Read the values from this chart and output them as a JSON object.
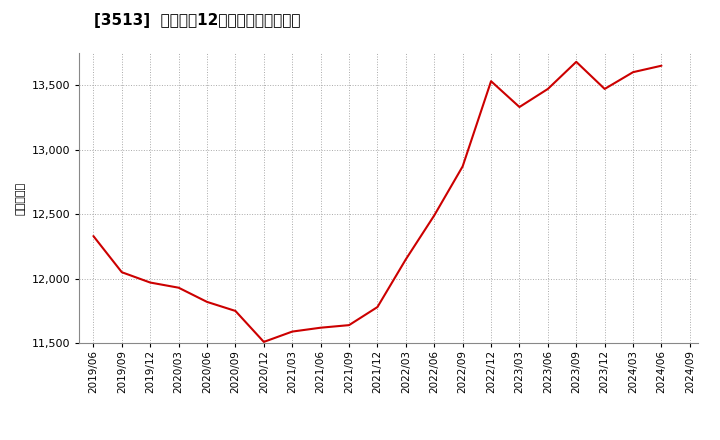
{
  "title": "[3513]  売上高の12か月移動合計の推移",
  "ylabel": "（百万円）",
  "line_color": "#cc0000",
  "background_color": "#ffffff",
  "grid_color": "#aaaaaa",
  "ylim": [
    11500,
    13750
  ],
  "yticks": [
    11500,
    12000,
    12500,
    13000,
    13500
  ],
  "dates": [
    "2019/06",
    "2019/09",
    "2019/12",
    "2020/03",
    "2020/06",
    "2020/09",
    "2020/12",
    "2021/03",
    "2021/06",
    "2021/09",
    "2021/12",
    "2022/03",
    "2022/06",
    "2022/09",
    "2022/12",
    "2023/03",
    "2023/06",
    "2023/09",
    "2023/12",
    "2024/03",
    "2024/06"
  ],
  "values": [
    12330,
    12050,
    11970,
    11930,
    11820,
    11750,
    11510,
    11590,
    11620,
    11640,
    11780,
    12150,
    12490,
    12870,
    13530,
    13330,
    13470,
    13680,
    13470,
    13600,
    13650
  ],
  "xtick_labels": [
    "2019/06",
    "2019/09",
    "2019/12",
    "2020/03",
    "2020/06",
    "2020/09",
    "2020/12",
    "2021/03",
    "2021/06",
    "2021/09",
    "2021/12",
    "2022/03",
    "2022/06",
    "2022/09",
    "2022/12",
    "2023/03",
    "2023/06",
    "2023/09",
    "2023/12",
    "2024/03",
    "2024/06",
    "2024/09"
  ],
  "title_fontsize": 11,
  "axis_fontsize": 8,
  "tick_fontsize": 7.5
}
